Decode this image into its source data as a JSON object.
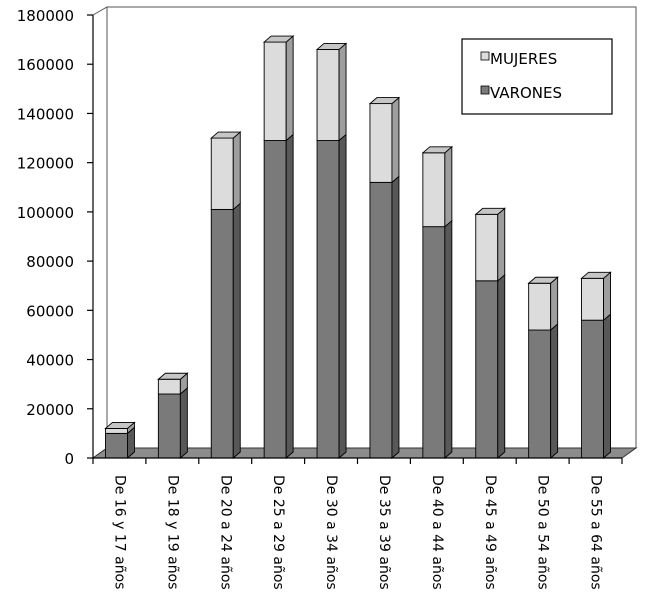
{
  "chart_data": {
    "type": "bar",
    "stacked": true,
    "three_d": true,
    "categories": [
      "De 16 y 17 años",
      "De 18 y 19 años",
      "De 20 a 24 años",
      "De 25 a 29 años",
      "De 30 a 34 años",
      "De 35 a 39 años",
      "De 40 a 44 años",
      "De 45 a 49 años",
      "De 50 a 54 años",
      "De 55 a 64 años"
    ],
    "series": [
      {
        "name": "VARONES",
        "color": "#7a7a7a",
        "values": [
          10000,
          26000,
          101000,
          129000,
          129000,
          112000,
          94000,
          72000,
          52000,
          56000
        ]
      },
      {
        "name": "MUJERES",
        "color": "#dcdcdc",
        "values": [
          2000,
          6000,
          29000,
          40000,
          37000,
          32000,
          30000,
          27000,
          19000,
          17000
        ]
      }
    ],
    "legend_order": [
      "MUJERES",
      "VARONES"
    ],
    "ylim": [
      0,
      180000
    ],
    "yticks": [
      0,
      20000,
      40000,
      60000,
      80000,
      100000,
      120000,
      140000,
      160000,
      180000
    ],
    "legend_position": "top-right",
    "grid": false,
    "title": "",
    "xlabel": "",
    "ylabel": ""
  }
}
